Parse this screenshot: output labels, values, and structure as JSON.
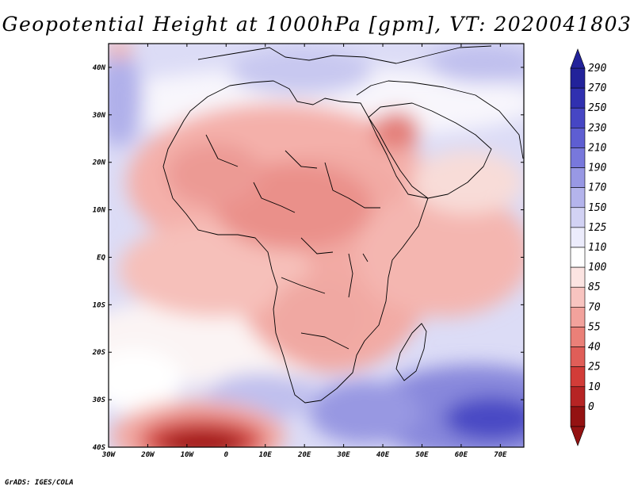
{
  "title": "Geopotential Height at 1000hPa [gpm], VT: 2020041803",
  "credit": "GrADS: IGES/COLA",
  "map": {
    "lon_ticks": [
      "30W",
      "20W",
      "10W",
      "0",
      "10E",
      "20E",
      "30E",
      "40E",
      "50E",
      "60E",
      "70E"
    ],
    "lat_ticks": [
      "40N",
      "30N",
      "20N",
      "10N",
      "EQ",
      "10S",
      "20S",
      "30S",
      "40S"
    ]
  },
  "colorbar": {
    "levels": [
      "290",
      "270",
      "250",
      "230",
      "210",
      "190",
      "170",
      "150",
      "125",
      "110",
      "100",
      "85",
      "70",
      "55",
      "40",
      "25",
      "10",
      "0"
    ],
    "colors": [
      "#22229a",
      "#3030b0",
      "#4646c4",
      "#5e5ed2",
      "#7878dc",
      "#9898e4",
      "#b4b4ec",
      "#d2d2f4",
      "#ececfc",
      "#ffffff",
      "#fce4e2",
      "#f8c4c0",
      "#f2a29c",
      "#ea8078",
      "#e05e58",
      "#d23c38",
      "#b62424",
      "#941212"
    ]
  }
}
